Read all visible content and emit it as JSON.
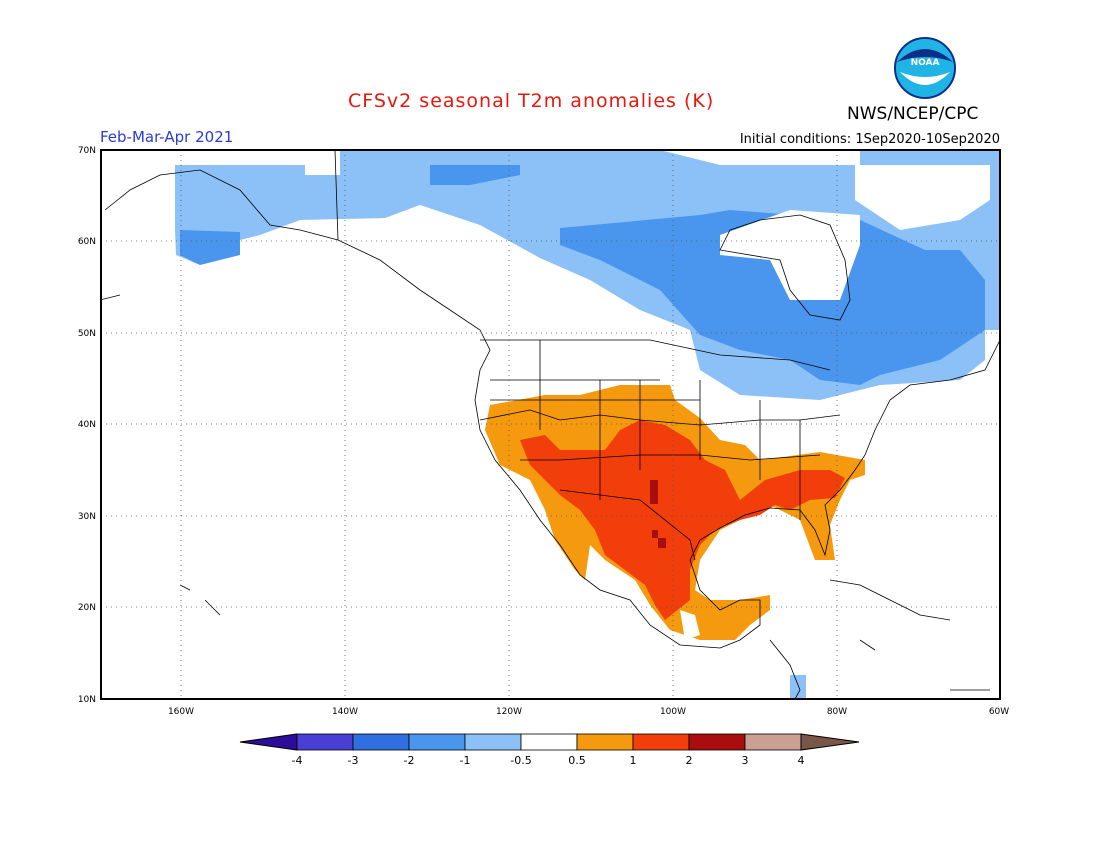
{
  "header": {
    "title": "CFSv2 seasonal T2m anomalies (K)",
    "agency": "NWS/NCEP/CPC",
    "period": "Feb-Mar-Apr 2021",
    "initial_conditions": "Initial conditions: 1Sep2020-10Sep2020",
    "logo_text": "NOAA"
  },
  "map": {
    "lon_range": [
      -170,
      -60
    ],
    "lat_range": [
      10,
      70
    ],
    "lat_labels": [
      "70N",
      "60N",
      "50N",
      "40N",
      "30N",
      "20N",
      "10N"
    ],
    "lon_labels": [
      "160W",
      "140W",
      "120W",
      "100W",
      "80W",
      "60W"
    ]
  },
  "colorbar": {
    "labels": [
      "-4",
      "-3",
      "-2",
      "-1",
      "-0.5",
      "0.5",
      "1",
      "2",
      "3",
      "4"
    ],
    "colors": [
      "#2b0d9a",
      "#4a3fd4",
      "#2f6fe0",
      "#4a96ee",
      "#8cc1f7",
      "#ffffff",
      "#f59a0f",
      "#f23e0a",
      "#a80e0e",
      "#c9a091",
      "#7a5649"
    ]
  }
}
